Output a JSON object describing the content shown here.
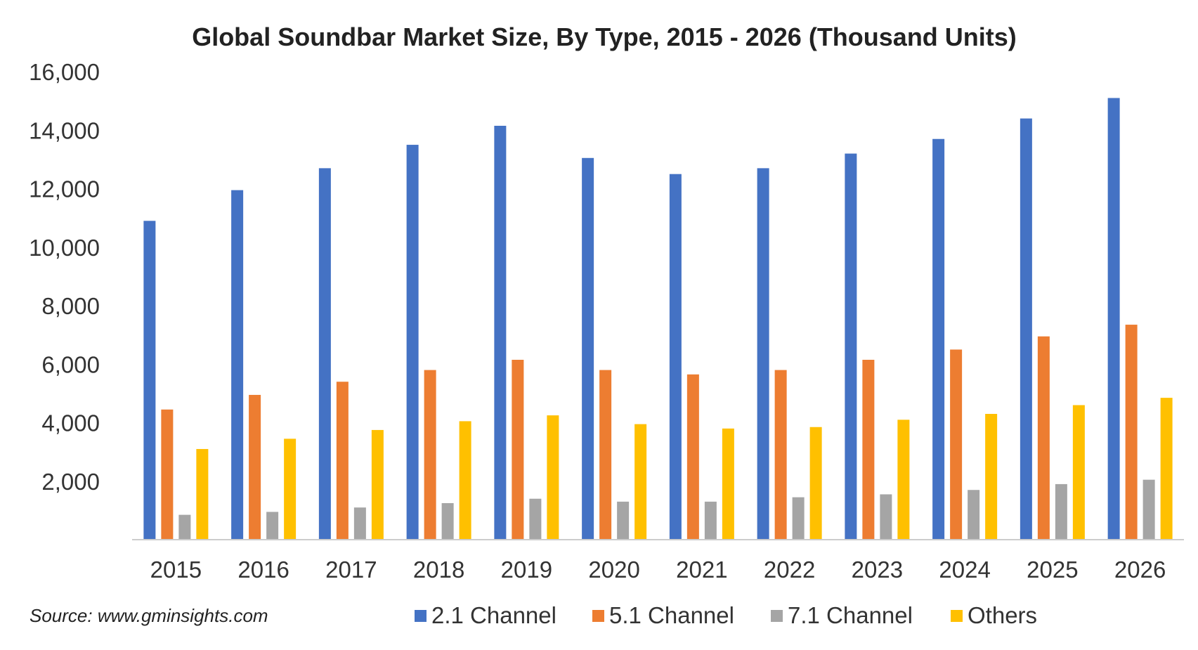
{
  "source_note": "Source: www.gminsights.com",
  "colors": {
    "series_2_1": "#4472c4",
    "series_5_1": "#ed7d31",
    "series_7_1": "#a5a5a5",
    "series_others": "#ffc000",
    "axis": "#cccccc",
    "text": "#333333"
  },
  "chart_data": {
    "type": "bar",
    "title": "Global Soundbar Market Size, By Type, 2015 - 2026 (Thousand Units)",
    "xlabel": "",
    "ylabel": "",
    "ylim": [
      0,
      16000
    ],
    "y_ticks": [
      "2,000",
      "4,000",
      "6,000",
      "8,000",
      "10,000",
      "12,000",
      "14,000",
      "16,000"
    ],
    "y_tick_values": [
      2000,
      4000,
      6000,
      8000,
      10000,
      12000,
      14000,
      16000
    ],
    "grid": false,
    "legend_position": "bottom",
    "categories": [
      "2015",
      "2016",
      "2017",
      "2018",
      "2019",
      "2020",
      "2021",
      "2022",
      "2023",
      "2024",
      "2025",
      "2026"
    ],
    "series": [
      {
        "name": "2.1 Channel",
        "color": "#4472c4",
        "values": [
          10900,
          11950,
          12700,
          13500,
          14150,
          13050,
          12500,
          12700,
          13200,
          13700,
          14400,
          15100
        ]
      },
      {
        "name": "5.1 Channel",
        "color": "#ed7d31",
        "values": [
          4450,
          4950,
          5400,
          5800,
          6150,
          5800,
          5650,
          5800,
          6150,
          6500,
          6950,
          7350
        ]
      },
      {
        "name": "7.1 Channel",
        "color": "#a5a5a5",
        "values": [
          850,
          950,
          1100,
          1250,
          1400,
          1300,
          1300,
          1450,
          1550,
          1700,
          1900,
          2050
        ]
      },
      {
        "name": "Others",
        "color": "#ffc000",
        "values": [
          3100,
          3450,
          3750,
          4050,
          4250,
          3950,
          3800,
          3850,
          4100,
          4300,
          4600,
          4850
        ]
      }
    ]
  }
}
